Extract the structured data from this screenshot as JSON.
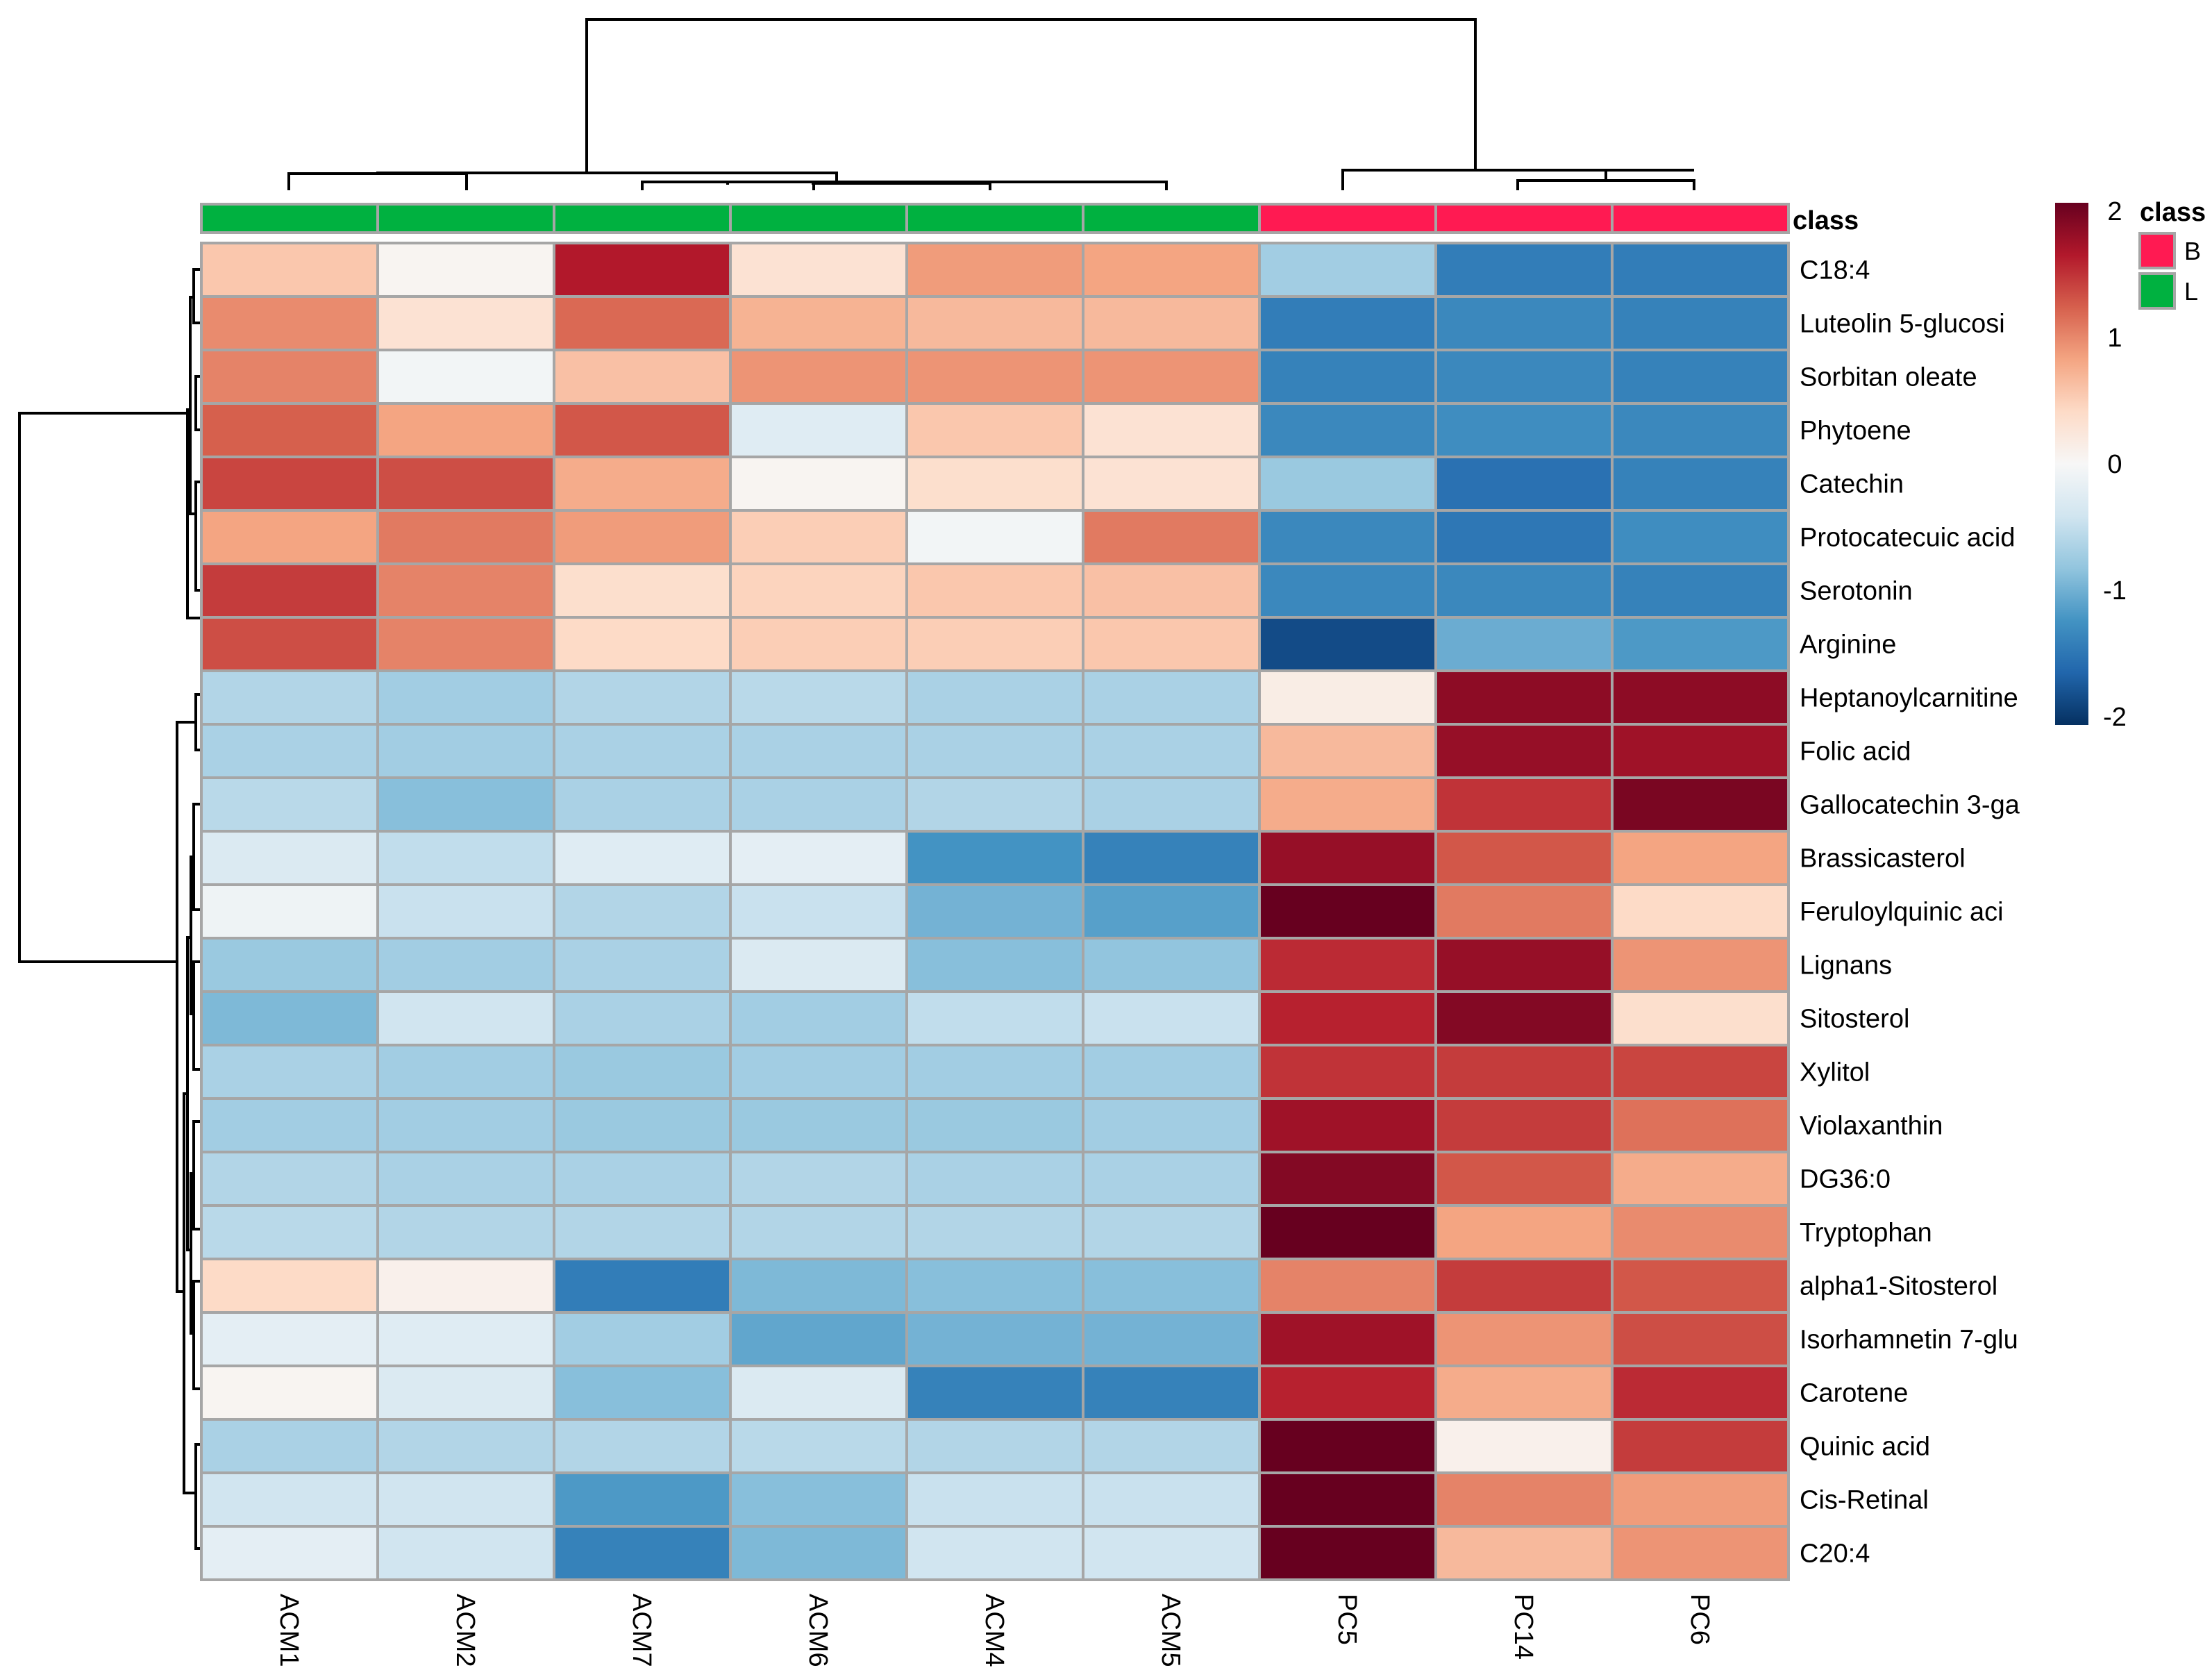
{
  "chart_data": {
    "type": "heatmap",
    "columns": [
      "ACM1",
      "ACM2",
      "ACM7",
      "ACM6",
      "ACM4",
      "ACM5",
      "PC5",
      "PC14",
      "PC6"
    ],
    "column_class": [
      "L",
      "L",
      "L",
      "L",
      "L",
      "L",
      "B",
      "B",
      "B"
    ],
    "rows": [
      "C18:4",
      "Luteolin 5-glucosi",
      "Sorbitan oleate",
      "Phytoene",
      "Catechin",
      "Protocatecuic acid",
      "Serotonin",
      "Arginine",
      "Heptanoylcarnitine",
      "Folic acid",
      "Gallocatechin 3-ga",
      "Brassicasterol",
      "Feruloylquinic aci",
      "Lignans",
      "Sitosterol",
      "Xylitol",
      "Violaxanthin",
      "DG36:0",
      "Tryptophan",
      "alpha1-Sitosterol",
      "Isorhamnetin 7-glu",
      "Carotene",
      "Quinic acid",
      "Cis-Retinal",
      "C20:4"
    ],
    "values": [
      [
        0.55,
        0.05,
        1.6,
        0.3,
        0.85,
        0.8,
        -0.7,
        -1.4,
        -1.4
      ],
      [
        0.95,
        0.3,
        1.15,
        0.7,
        0.65,
        0.65,
        -1.4,
        -1.3,
        -1.35
      ],
      [
        1.0,
        -0.05,
        0.6,
        0.9,
        0.9,
        0.9,
        -1.35,
        -1.3,
        -1.35
      ],
      [
        1.2,
        0.8,
        1.25,
        -0.25,
        0.55,
        0.3,
        -1.3,
        -1.25,
        -1.3
      ],
      [
        1.35,
        1.3,
        0.75,
        0.05,
        0.35,
        0.3,
        -0.75,
        -1.5,
        -1.35
      ],
      [
        0.8,
        1.05,
        0.85,
        0.5,
        -0.05,
        1.05,
        -1.3,
        -1.45,
        -1.25
      ],
      [
        1.4,
        1.0,
        0.35,
        0.45,
        0.55,
        0.6,
        -1.3,
        -1.3,
        -1.35
      ],
      [
        1.3,
        1.0,
        0.4,
        0.5,
        0.5,
        0.55,
        -1.8,
        -1.0,
        -1.15
      ],
      [
        -0.6,
        -0.7,
        -0.6,
        -0.55,
        -0.65,
        -0.65,
        0.15,
        1.8,
        1.8
      ],
      [
        -0.65,
        -0.7,
        -0.65,
        -0.65,
        -0.65,
        -0.65,
        0.65,
        1.75,
        1.7
      ],
      [
        -0.55,
        -0.85,
        -0.65,
        -0.65,
        -0.6,
        -0.65,
        0.75,
        1.45,
        1.9
      ],
      [
        -0.3,
        -0.5,
        -0.25,
        -0.2,
        -1.2,
        -1.35,
        1.75,
        1.25,
        0.8
      ],
      [
        -0.1,
        -0.45,
        -0.6,
        -0.45,
        -0.95,
        -1.1,
        2.05,
        1.05,
        0.4
      ],
      [
        -0.75,
        -0.7,
        -0.65,
        -0.3,
        -0.85,
        -0.8,
        1.5,
        1.75,
        0.9
      ],
      [
        -0.9,
        -0.4,
        -0.65,
        -0.7,
        -0.5,
        -0.45,
        1.55,
        1.85,
        0.35
      ],
      [
        -0.65,
        -0.7,
        -0.75,
        -0.7,
        -0.7,
        -0.7,
        1.45,
        1.4,
        1.35
      ],
      [
        -0.7,
        -0.7,
        -0.75,
        -0.75,
        -0.75,
        -0.7,
        1.7,
        1.4,
        1.1
      ],
      [
        -0.6,
        -0.65,
        -0.65,
        -0.6,
        -0.65,
        -0.65,
        1.85,
        1.25,
        0.75
      ],
      [
        -0.55,
        -0.6,
        -0.6,
        -0.6,
        -0.6,
        -0.6,
        2.05,
        0.8,
        0.95
      ],
      [
        0.4,
        0.1,
        -1.4,
        -0.9,
        -0.85,
        -0.85,
        1.0,
        1.4,
        1.25
      ],
      [
        -0.2,
        -0.25,
        -0.7,
        -1.05,
        -0.95,
        -0.95,
        1.7,
        0.9,
        1.3
      ],
      [
        0.05,
        -0.3,
        -0.85,
        -0.3,
        -1.35,
        -1.35,
        1.55,
        0.75,
        1.5
      ],
      [
        -0.65,
        -0.6,
        -0.6,
        -0.55,
        -0.6,
        -0.6,
        2.05,
        0.1,
        1.4
      ],
      [
        -0.4,
        -0.4,
        -1.15,
        -0.85,
        -0.45,
        -0.45,
        2.0,
        1.0,
        0.85
      ],
      [
        -0.2,
        -0.4,
        -1.35,
        -0.9,
        -0.4,
        -0.4,
        2.0,
        0.65,
        0.9
      ]
    ],
    "color_scale": {
      "min": -2,
      "max": 2,
      "ticks": [
        "2",
        "1",
        "0",
        "-1",
        "-2"
      ],
      "stops": [
        "#053061",
        "#2166ac",
        "#4393c3",
        "#92c5de",
        "#d1e5f0",
        "#f7f7f7",
        "#fddbc7",
        "#f4a582",
        "#d6604d",
        "#b2182b",
        "#67001f"
      ]
    },
    "annotation": {
      "title": "class",
      "legend": [
        {
          "label": "B",
          "color": "#ff1a52"
        },
        {
          "label": "L",
          "color": "#00b140"
        }
      ]
    },
    "colorbar_title": "class"
  }
}
